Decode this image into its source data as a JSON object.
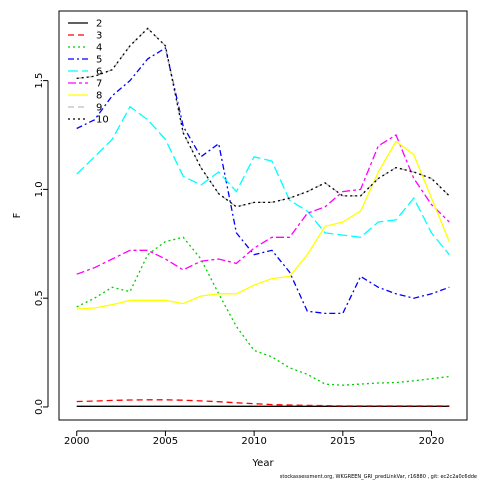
{
  "chart_data": {
    "type": "line",
    "xlabel": "Year",
    "ylabel": "F",
    "xlim": [
      1999,
      2022
    ],
    "ylim": [
      -0.06,
      1.82
    ],
    "xticks": [
      2000,
      2005,
      2010,
      2015,
      2020
    ],
    "yticks": [
      0.0,
      0.5,
      1.0,
      1.5
    ],
    "ytick_labels": [
      "0.0",
      "0.5",
      "1.0",
      "1.5"
    ],
    "legend_position": "top-left",
    "footnote": "stockassessment.org,  WKGREEN_GRI_predLinkVar,  r16880 ,  git:  ec2c2a0c6dde",
    "x": [
      2000,
      2001,
      2002,
      2003,
      2004,
      2005,
      2006,
      2007,
      2008,
      2009,
      2010,
      2011,
      2012,
      2013,
      2014,
      2015,
      2016,
      2017,
      2018,
      2019,
      2020,
      2021
    ],
    "series": [
      {
        "name": "2",
        "color": "#000000",
        "dash": "solid",
        "values": [
          0.003,
          0.003,
          0.003,
          0.003,
          0.003,
          0.003,
          0.003,
          0.003,
          0.003,
          0.003,
          0.003,
          0.003,
          0.003,
          0.003,
          0.003,
          0.003,
          0.003,
          0.003,
          0.003,
          0.003,
          0.003,
          0.003
        ]
      },
      {
        "name": "3",
        "color": "#ff0000",
        "dash": "dashed",
        "values": [
          0.025,
          0.027,
          0.03,
          0.032,
          0.033,
          0.033,
          0.031,
          0.028,
          0.024,
          0.019,
          0.015,
          0.011,
          0.009,
          0.007,
          0.006,
          0.005,
          0.005,
          0.005,
          0.005,
          0.005,
          0.005,
          0.005
        ]
      },
      {
        "name": "4",
        "color": "#00cd00",
        "dash": "dotted",
        "values": [
          0.46,
          0.5,
          0.55,
          0.53,
          0.7,
          0.76,
          0.78,
          0.68,
          0.52,
          0.37,
          0.26,
          0.23,
          0.18,
          0.15,
          0.105,
          0.1,
          0.105,
          0.11,
          0.112,
          0.12,
          0.13,
          0.14
        ]
      },
      {
        "name": "5",
        "color": "#0000ff",
        "dash": "dashdot",
        "values": [
          1.28,
          1.32,
          1.43,
          1.5,
          1.6,
          1.65,
          1.29,
          1.15,
          1.21,
          0.8,
          0.7,
          0.72,
          0.62,
          0.44,
          0.43,
          0.43,
          0.6,
          0.55,
          0.52,
          0.5,
          0.52,
          0.55
        ]
      },
      {
        "name": "6",
        "color": "#00ffff",
        "dash": "longdash",
        "values": [
          1.07,
          1.15,
          1.23,
          1.38,
          1.32,
          1.23,
          1.06,
          1.02,
          1.08,
          0.99,
          1.15,
          1.13,
          0.95,
          0.9,
          0.8,
          0.79,
          0.78,
          0.85,
          0.86,
          0.96,
          0.8,
          0.7
        ]
      },
      {
        "name": "7",
        "color": "#ff00ff",
        "dash": "twodash",
        "values": [
          0.61,
          0.64,
          0.68,
          0.72,
          0.72,
          0.68,
          0.63,
          0.67,
          0.68,
          0.66,
          0.73,
          0.78,
          0.78,
          0.89,
          0.92,
          0.99,
          1.0,
          1.2,
          1.25,
          1.05,
          0.93,
          0.85
        ]
      },
      {
        "name": "8",
        "color": "#ffff00",
        "dash": "solid",
        "values": [
          0.45,
          0.455,
          0.47,
          0.49,
          0.49,
          0.49,
          0.475,
          0.51,
          0.52,
          0.52,
          0.56,
          0.59,
          0.6,
          0.7,
          0.83,
          0.85,
          0.9,
          1.08,
          1.22,
          1.16,
          0.96,
          0.76
        ]
      },
      {
        "name": "9",
        "color": "#bebebe",
        "dash": "dashed",
        "values": [
          1.51,
          1.52,
          1.55,
          1.66,
          1.74,
          1.66,
          1.26,
          1.1,
          0.98,
          0.92,
          0.94,
          0.94,
          0.96,
          0.99,
          1.03,
          0.97,
          0.97,
          1.05,
          1.1,
          1.08,
          1.05,
          0.97
        ]
      },
      {
        "name": "10",
        "color": "#000000",
        "dash": "dotted",
        "values": [
          1.51,
          1.52,
          1.55,
          1.66,
          1.74,
          1.66,
          1.26,
          1.1,
          0.98,
          0.92,
          0.94,
          0.94,
          0.96,
          0.99,
          1.03,
          0.97,
          0.97,
          1.05,
          1.1,
          1.08,
          1.05,
          0.97
        ]
      }
    ]
  }
}
